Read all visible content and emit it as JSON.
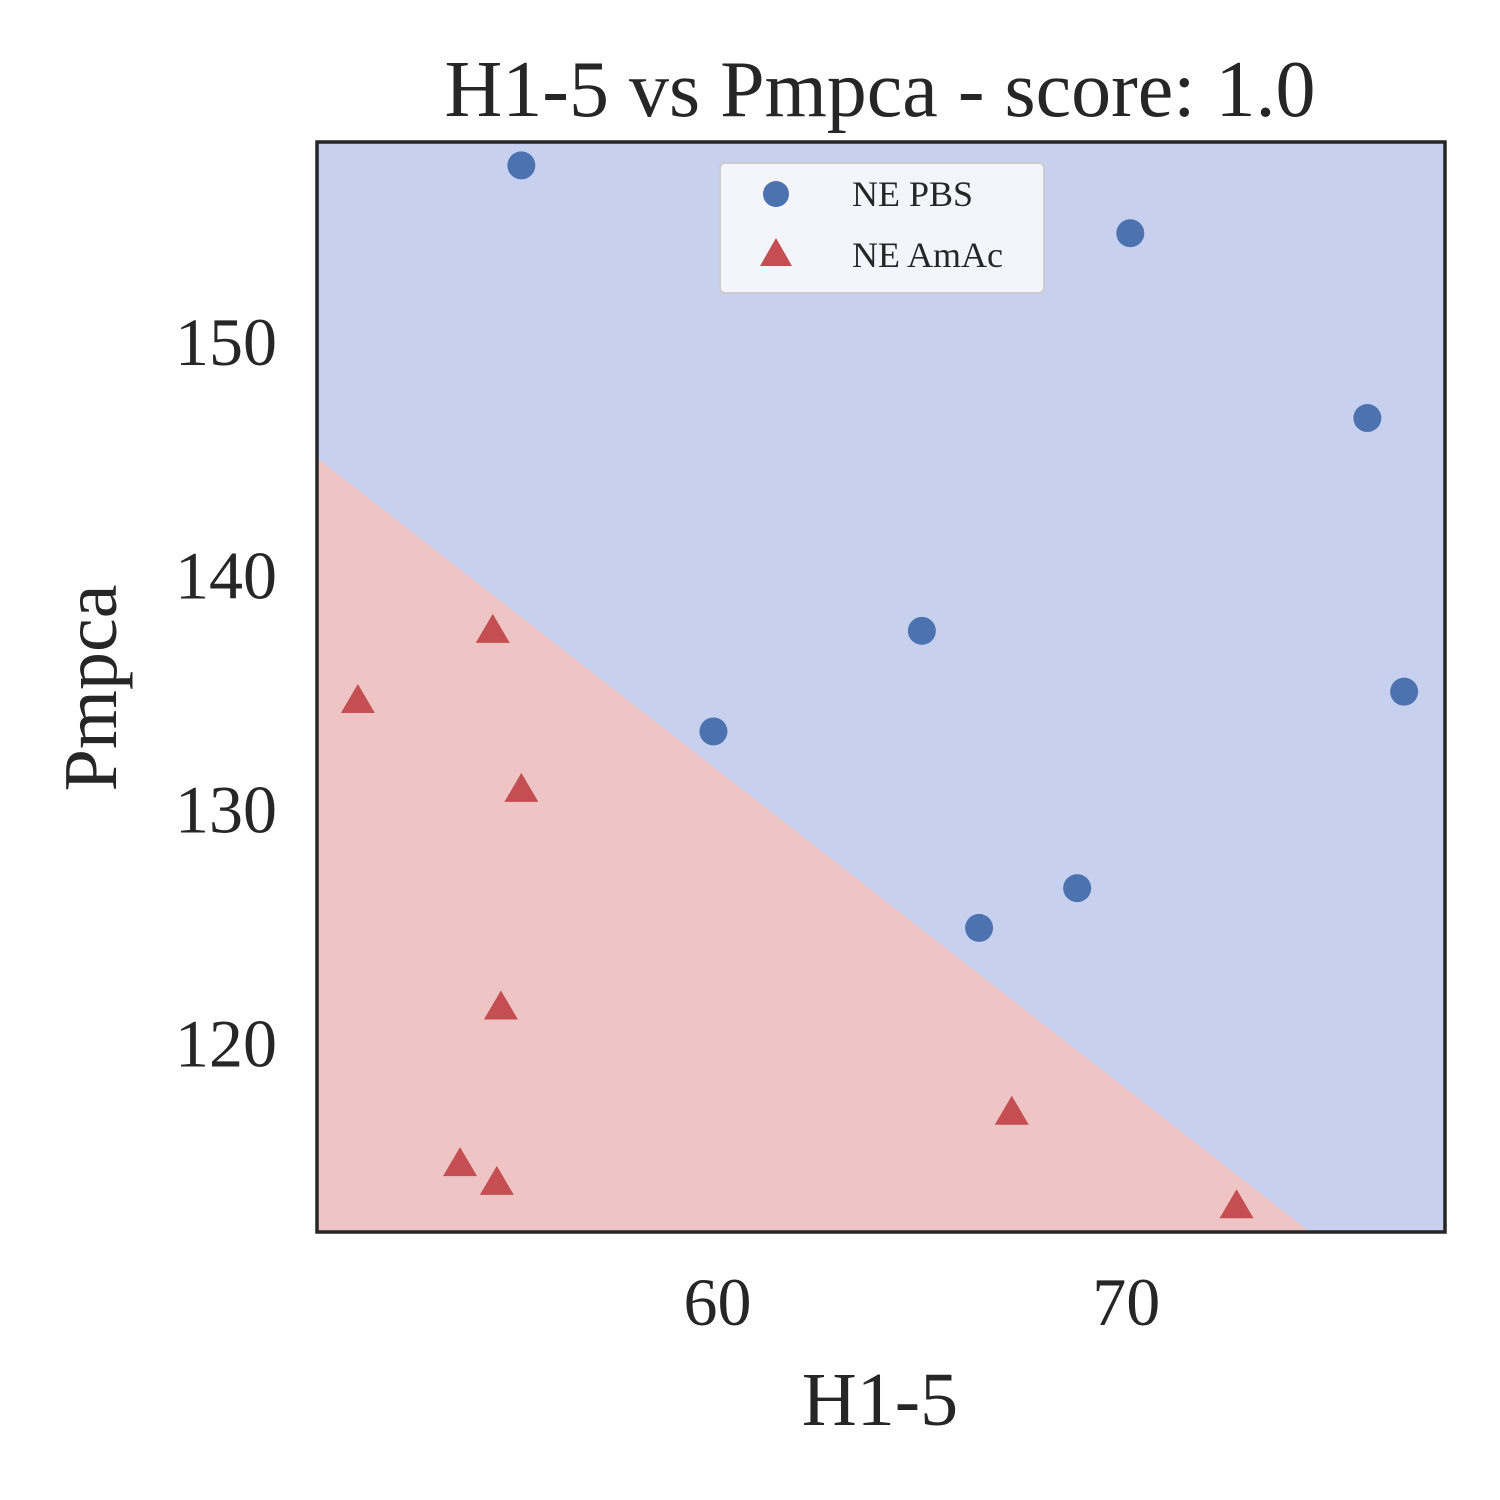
{
  "chart_data": {
    "type": "scatter",
    "title": "H1-5 vs Pmpca - score: 1.0",
    "xlabel": "H1-5",
    "ylabel": "Pmpca",
    "xlim": [
      50.2,
      77.8
    ],
    "ylim": [
      111.9,
      158.5
    ],
    "xticks": [
      60,
      70
    ],
    "yticks": [
      120,
      130,
      140,
      150
    ],
    "grid": false,
    "legend_position": "top-center",
    "decision_boundary": {
      "x": [
        50.2,
        74.5
      ],
      "y": [
        145.0,
        111.9
      ]
    },
    "regions": {
      "upper_color": "#c8d0f0",
      "lower_color": "#eec4c4"
    },
    "series": [
      {
        "name": "NE PBS",
        "marker": "circle",
        "color": "#4c72b0",
        "points": [
          [
            55.2,
            157.5
          ],
          [
            70.1,
            154.6
          ],
          [
            75.9,
            146.7
          ],
          [
            76.8,
            135.0
          ],
          [
            65.0,
            137.6
          ],
          [
            59.9,
            133.3
          ],
          [
            68.8,
            126.6
          ],
          [
            66.4,
            124.9
          ]
        ]
      },
      {
        "name": "NE AmAc",
        "marker": "triangle",
        "color": "#c44e52",
        "points": [
          [
            51.2,
            134.6
          ],
          [
            54.5,
            137.6
          ],
          [
            55.2,
            130.8
          ],
          [
            54.7,
            121.5
          ],
          [
            53.7,
            114.8
          ],
          [
            54.6,
            114.0
          ],
          [
            67.2,
            117.0
          ],
          [
            72.7,
            113.0
          ]
        ]
      }
    ]
  }
}
